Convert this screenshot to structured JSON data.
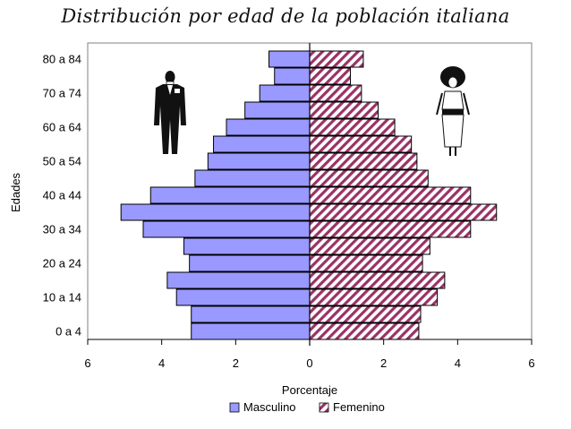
{
  "chart_data": {
    "type": "bar",
    "orientation": "horizontal-population-pyramid",
    "title": "Distribución por edad de la población italiana",
    "xlabel": "Porcentaje",
    "ylabel": "Edades",
    "categories": [
      "0 a 4",
      "",
      "10 a 14",
      "",
      "20 a 24",
      "",
      "30 a 34",
      "",
      "40 a 44",
      "",
      "50 a 54",
      "",
      "60 a 64",
      "",
      "70 a 74",
      "",
      "80 a 84"
    ],
    "series": [
      {
        "name": "Masculino",
        "values": [
          3.2,
          3.2,
          3.6,
          3.85,
          3.25,
          3.4,
          4.5,
          5.1,
          4.3,
          3.1,
          2.75,
          2.6,
          2.25,
          1.75,
          1.35,
          0.95,
          1.1
        ],
        "color": "#9999ff",
        "side": "left"
      },
      {
        "name": "Femenino",
        "values": [
          2.95,
          3.0,
          3.45,
          3.65,
          3.05,
          3.25,
          4.35,
          5.05,
          4.35,
          3.2,
          2.9,
          2.75,
          2.3,
          1.85,
          1.4,
          1.1,
          1.45
        ],
        "color": "#993366",
        "side": "right",
        "pattern": "diagonal-hatch"
      }
    ],
    "xlim": [
      -6,
      6
    ],
    "xticks": [
      "6",
      "4",
      "2",
      "0",
      "2",
      "4",
      "6"
    ],
    "legend": "bottom",
    "grid": false
  }
}
